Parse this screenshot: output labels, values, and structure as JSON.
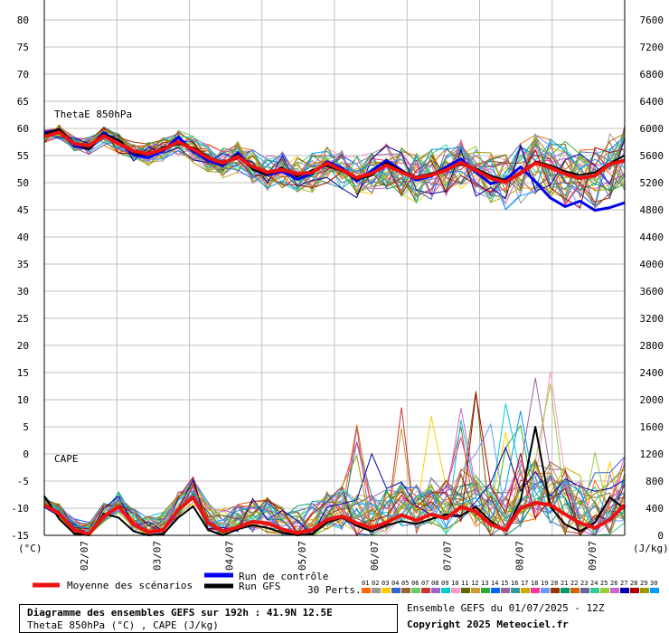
{
  "chart_data": {
    "type": "line",
    "title": "Diagramme des ensembles GEFS sur 192h : 41.9N 12.5E",
    "subtitle": "ThetaE 850hPa (°C) , CAPE (J/kg)",
    "panel_labels": [
      "ThetaE 850hPa",
      "CAPE"
    ],
    "left_axis": {
      "unit": "(°C)",
      "ylim": [
        -15,
        80
      ],
      "ticks": [
        80,
        75,
        70,
        65,
        60,
        55,
        50,
        45,
        40,
        35,
        30,
        25,
        20,
        15,
        10,
        5,
        0,
        -5,
        -10,
        -15
      ]
    },
    "right_axis": {
      "unit": "(J/kg)",
      "ylim": [
        0,
        7600
      ],
      "ticks": [
        7600,
        7200,
        6800,
        6400,
        6000,
        5600,
        5200,
        4800,
        4400,
        4000,
        3600,
        3200,
        2800,
        2400,
        2000,
        1600,
        1200,
        800,
        400,
        0
      ]
    },
    "x_axis": {
      "ticks": [
        "02/07",
        "03/07",
        "04/07",
        "05/07",
        "06/07",
        "07/07",
        "08/07",
        "09/07"
      ],
      "hours": [
        0,
        192
      ]
    },
    "grid": true,
    "thetae_mean": {
      "name": "Moyenne des scénarios",
      "color": "#ee1111",
      "values": [
        58.5,
        59.3,
        57.2,
        56.8,
        58.6,
        57.2,
        55.8,
        55.3,
        56.2,
        57.5,
        56.2,
        54.6,
        53.6,
        54.8,
        53.0,
        51.9,
        52.4,
        51.6,
        51.9,
        53.6,
        52.3,
        50.9,
        51.7,
        53.2,
        51.9,
        50.9,
        51.4,
        52.3,
        53.7,
        52.3,
        50.8,
        50.1,
        51.8,
        53.6,
        52.8,
        51.6,
        50.8,
        51.3,
        53.4,
        54.1
      ]
    },
    "thetae_control": {
      "name": "Run de contrôle",
      "color": "#0000ee",
      "values": [
        59.2,
        59.6,
        56.8,
        56.3,
        59.2,
        57.5,
        55.1,
        54.6,
        55.9,
        58.4,
        55.8,
        54.1,
        53.1,
        55.5,
        52.6,
        51.4,
        52.1,
        50.6,
        51.7,
        53.9,
        52.7,
        50.3,
        52.2,
        54.1,
        52.3,
        50.5,
        51.2,
        52.9,
        54.4,
        51.9,
        49.8,
        50.6,
        52.9,
        50.2,
        47.2,
        45.6,
        46.6,
        44.9,
        45.4,
        46.3
      ]
    },
    "thetae_gfs": {
      "name": "Run GFS",
      "color": "#000000",
      "values": [
        58.9,
        59.9,
        57.4,
        56.1,
        58.9,
        57.9,
        55.4,
        55.1,
        56.6,
        57.1,
        56.5,
        54.9,
        53.3,
        55.2,
        52.4,
        51.5,
        52.8,
        51.1,
        52.3,
        53.1,
        52.1,
        50.6,
        51.3,
        53.7,
        52.2,
        51.1,
        51.7,
        52.5,
        53.3,
        52.6,
        51.3,
        50.4,
        51.5,
        53.9,
        53.2,
        52.1,
        51.4,
        51.9,
        53.6,
        55.0
      ]
    },
    "cape_mean": {
      "name": "Moyenne des scénarios",
      "color": "#ee1111",
      "values": [
        450,
        320,
        80,
        20,
        280,
        420,
        160,
        45,
        80,
        380,
        560,
        190,
        60,
        120,
        200,
        180,
        90,
        35,
        80,
        230,
        280,
        180,
        110,
        190,
        300,
        220,
        310,
        250,
        420,
        350,
        160,
        80,
        400,
        480,
        450,
        310,
        180,
        110,
        230,
        450
      ]
    },
    "cape_gfs": {
      "name": "Run GFS",
      "color": "#000000",
      "values": [
        580,
        240,
        30,
        0,
        320,
        260,
        60,
        0,
        20,
        260,
        430,
        80,
        0,
        90,
        150,
        110,
        40,
        0,
        20,
        190,
        260,
        140,
        60,
        150,
        210,
        170,
        240,
        310,
        290,
        420,
        210,
        70,
        510,
        1600,
        420,
        160,
        60,
        190,
        560,
        390
      ]
    },
    "ensemble": {
      "label": "30 Perts.",
      "count": 30
    },
    "member_labels": [
      "01",
      "02",
      "03",
      "04",
      "05",
      "06",
      "07",
      "08",
      "09",
      "10",
      "11",
      "12",
      "13",
      "14",
      "15",
      "16",
      "17",
      "18",
      "19",
      "20",
      "21",
      "22",
      "23",
      "24",
      "25",
      "26",
      "27",
      "28",
      "29",
      "30"
    ],
    "member_colors": [
      "#ff6600",
      "#999999",
      "#ffcc00",
      "#3366cc",
      "#996633",
      "#66cc66",
      "#cc3333",
      "#9966cc",
      "#00cccc",
      "#ff99cc",
      "#666600",
      "#cc9933",
      "#33aa33",
      "#0066ff",
      "#996699",
      "#339999",
      "#ccaa00",
      "#ff3399",
      "#6699ff",
      "#993300",
      "#009966",
      "#cc6600",
      "#666699",
      "#33cc99",
      "#99cc33",
      "#cc66cc",
      "#0000aa",
      "#aa0000",
      "#999900",
      "#0099ff"
    ]
  },
  "legend": {
    "mean": "Moyenne des scénarios",
    "control": "Run de contrôle",
    "gfs": "Run GFS",
    "perts": "30 Perts."
  },
  "footer": {
    "title": "Diagramme des ensembles GEFS sur 192h : 41.9N 12.5E",
    "subtitle": "ThetaE 850hPa (°C) , CAPE (J/kg)",
    "run": "Ensemble GEFS du 01/07/2025 - 12Z",
    "copyright": "Copyright 2025 Meteociel.fr"
  }
}
